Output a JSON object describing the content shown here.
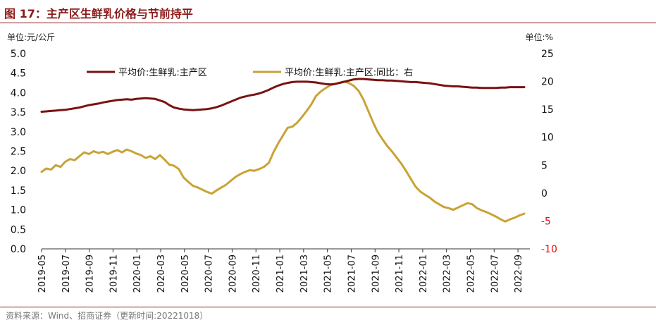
{
  "figure": {
    "title": "图 17：主产区生鲜乳价格与节前持平",
    "left_unit": "单位:元/公斤",
    "right_unit": "单位:%",
    "source": "资料来源：Wind、招商证券（更新时间:20221018）"
  },
  "colors": {
    "accent": "#8b1a1a",
    "series_price": "#7a1212",
    "series_yoy": "#c8a336",
    "negative_tick": "#e01010"
  },
  "chart_data": {
    "type": "line",
    "left_axis": {
      "ylim": [
        0,
        5
      ],
      "ticks": [
        "0.0",
        "0.5",
        "1.0",
        "1.5",
        "2.0",
        "2.5",
        "3.0",
        "3.5",
        "4.0",
        "4.5",
        "5.0"
      ]
    },
    "right_axis": {
      "ylim": [
        -10,
        25
      ],
      "ticks": [
        "-10",
        "-5",
        "0",
        "5",
        "10",
        "15",
        "20",
        "25"
      ]
    },
    "x_ticks": [
      "2019-05",
      "2019-07",
      "2019-09",
      "2019-11",
      "2020-01",
      "2020-03",
      "2020-05",
      "2020-07",
      "2020-09",
      "2020-11",
      "2021-01",
      "2021-03",
      "2021-05",
      "2021-07",
      "2021-09",
      "2021-11",
      "2022-01",
      "2022-03",
      "2022-05",
      "2022-07",
      "2022-09"
    ],
    "legend_placement": "top-left",
    "grid": false,
    "series": [
      {
        "name": "平均价:生鲜乳:主产区",
        "axis": "left",
        "values": [
          3.51,
          3.52,
          3.53,
          3.54,
          3.55,
          3.56,
          3.58,
          3.6,
          3.62,
          3.65,
          3.68,
          3.7,
          3.72,
          3.75,
          3.77,
          3.79,
          3.81,
          3.82,
          3.83,
          3.82,
          3.84,
          3.85,
          3.86,
          3.85,
          3.84,
          3.8,
          3.76,
          3.68,
          3.62,
          3.59,
          3.57,
          3.56,
          3.55,
          3.56,
          3.57,
          3.58,
          3.6,
          3.63,
          3.67,
          3.72,
          3.77,
          3.82,
          3.87,
          3.9,
          3.93,
          3.95,
          3.98,
          4.02,
          4.07,
          4.13,
          4.18,
          4.22,
          4.25,
          4.27,
          4.28,
          4.28,
          4.28,
          4.27,
          4.26,
          4.24,
          4.22,
          4.21,
          4.22,
          4.25,
          4.28,
          4.31,
          4.34,
          4.35,
          4.35,
          4.34,
          4.33,
          4.32,
          4.32,
          4.31,
          4.31,
          4.3,
          4.29,
          4.28,
          4.27,
          4.27,
          4.26,
          4.25,
          4.24,
          4.22,
          4.2,
          4.18,
          4.17,
          4.16,
          4.16,
          4.15,
          4.14,
          4.13,
          4.13,
          4.12,
          4.12,
          4.12,
          4.12,
          4.13,
          4.13,
          4.14,
          4.14,
          4.14,
          4.14
        ]
      },
      {
        "name": "平均价:生鲜乳:主产区:同比：右",
        "axis": "right",
        "values": [
          3.8,
          4.4,
          4.2,
          5.0,
          4.7,
          5.6,
          6.1,
          5.9,
          6.6,
          7.3,
          7.0,
          7.5,
          7.2,
          7.4,
          7.0,
          7.4,
          7.7,
          7.3,
          7.8,
          7.5,
          7.1,
          6.8,
          6.3,
          6.6,
          6.1,
          6.8,
          6.0,
          5.1,
          4.9,
          4.3,
          2.8,
          2.0,
          1.3,
          1.0,
          0.6,
          0.2,
          -0.1,
          0.5,
          1.0,
          1.5,
          2.2,
          2.9,
          3.4,
          3.8,
          4.1,
          4.0,
          4.3,
          4.7,
          5.4,
          7.3,
          8.9,
          10.3,
          11.7,
          11.9,
          12.6,
          13.6,
          14.7,
          15.9,
          17.4,
          18.2,
          18.8,
          19.3,
          19.6,
          19.8,
          20.0,
          19.7,
          19.2,
          18.3,
          16.8,
          14.8,
          12.8,
          11.0,
          9.7,
          8.5,
          7.5,
          6.4,
          5.3,
          4.0,
          2.6,
          1.2,
          0.3,
          -0.3,
          -0.8,
          -1.5,
          -2.0,
          -2.5,
          -2.7,
          -3.0,
          -2.6,
          -2.2,
          -1.8,
          -2.0,
          -2.7,
          -3.1,
          -3.4,
          -3.8,
          -4.2,
          -4.7,
          -5.1,
          -4.7,
          -4.4,
          -4.0,
          -3.7
        ]
      }
    ]
  }
}
